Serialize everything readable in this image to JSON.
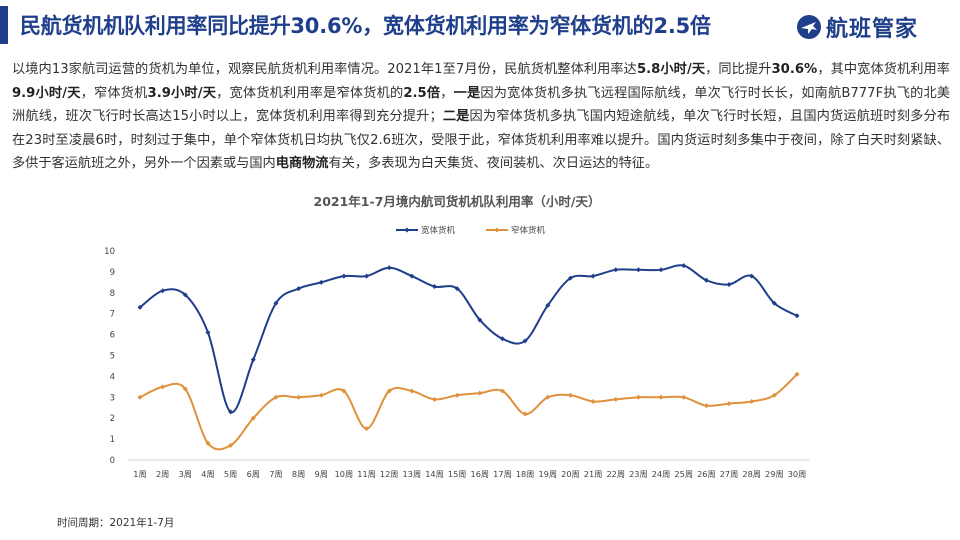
{
  "header": {
    "title": "民航货机机队利用率同比提升30.6%，宽体货机利用率为窄体货机的2.5倍",
    "logo_text": "航班管家",
    "logo_icon": "plane-logo-icon",
    "accent": "#1f3f8a"
  },
  "paragraph": [
    {
      "t": "以境内13家航司运营的货机为单位，观察民航货机利用率情况。2021年1至7月份，民航货机整体利用率达"
    },
    {
      "t": "5.8小时/天",
      "b": true
    },
    {
      "t": "，同比提升"
    },
    {
      "t": "30.6%",
      "b": true
    },
    {
      "t": "，其中宽体货机利用率"
    },
    {
      "t": "9.9小时/天",
      "b": true
    },
    {
      "t": "，窄体货机"
    },
    {
      "t": "3.9小时/天",
      "b": true
    },
    {
      "t": "，宽体货机利用率是窄体货机的"
    },
    {
      "t": "2.5倍",
      "b": true
    },
    {
      "t": "，"
    },
    {
      "t": "一是",
      "b": true
    },
    {
      "t": "因为宽体货机多执飞远程国际航线，单次飞行时长长，如南航B777F执飞的北美洲航线，班次飞行时长高达15小时以上，宽体货机利用率得到充分提升；"
    },
    {
      "t": "二是",
      "b": true
    },
    {
      "t": "因为窄体货机多执飞国内短途航线，单次飞行时长短，且国内货运航班时刻多分布在23时至凌晨6时，时刻过于集中，单个窄体货机日均执飞仅2.6班次，受限于此，窄体货机利用率难以提升。国内货运时刻多集中于夜间，除了白天时刻紧缺、多供于客运航班之外，另外一个因素或与国内"
    },
    {
      "t": "电商物流",
      "b": true
    },
    {
      "t": "有关，多表现为白天集货、夜间装机、次日运达的特征。"
    }
  ],
  "footer": "时间周期：2021年1-7月",
  "chart_data": {
    "type": "line",
    "title": "2021年1-7月境内航司货机机队利用率（小时/天）",
    "xlabel": "",
    "ylabel": "",
    "ylim": [
      0,
      10
    ],
    "yticks": [
      0,
      1,
      2,
      3,
      4,
      5,
      6,
      7,
      8,
      9,
      10
    ],
    "legend_position": "top-center",
    "grid": false,
    "categories": [
      "1周",
      "2周",
      "3周",
      "4周",
      "5周",
      "6周",
      "7周",
      "8周",
      "9周",
      "10周",
      "11周",
      "12周",
      "13周",
      "14周",
      "15周",
      "16周",
      "17周",
      "18周",
      "19周",
      "20周",
      "21周",
      "22周",
      "23周",
      "24周",
      "25周",
      "26周",
      "27周",
      "28周",
      "29周",
      "30周"
    ],
    "series": [
      {
        "name": "宽体货机",
        "color": "#1f3f8a",
        "values": [
          7.3,
          8.1,
          7.9,
          6.1,
          2.3,
          4.8,
          7.5,
          8.2,
          8.5,
          8.8,
          8.8,
          9.2,
          8.8,
          8.3,
          8.2,
          6.7,
          5.8,
          5.7,
          7.4,
          8.7,
          8.8,
          9.1,
          9.1,
          9.1,
          9.3,
          8.6,
          8.4,
          8.8,
          7.5,
          6.9
        ]
      },
      {
        "name": "窄体货机",
        "color": "#e0913c",
        "values": [
          3.0,
          3.5,
          3.4,
          0.8,
          0.7,
          2.0,
          3.0,
          3.0,
          3.1,
          3.3,
          1.5,
          3.3,
          3.3,
          2.9,
          3.1,
          3.2,
          3.3,
          2.2,
          3.0,
          3.1,
          2.8,
          2.9,
          3.0,
          3.0,
          3.0,
          2.6,
          2.7,
          2.8,
          3.1,
          4.1
        ]
      }
    ]
  }
}
